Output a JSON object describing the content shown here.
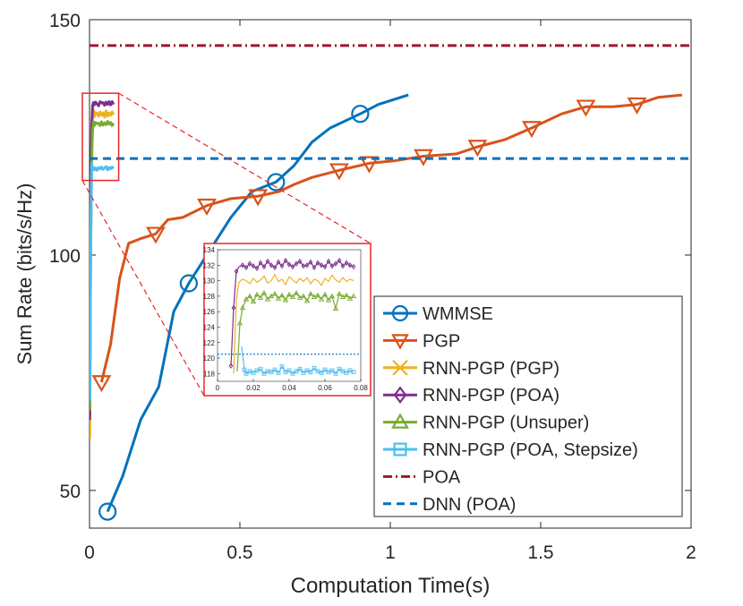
{
  "chart_data": [
    {
      "type": "line",
      "role": "main",
      "xlabel": "Computation Time(s)",
      "ylabel": "Sum Rate (bits/s/Hz)",
      "xlim": [
        0,
        2
      ],
      "ylim": [
        42,
        150
      ],
      "xticks": [
        0,
        0.5,
        1,
        1.5,
        2
      ],
      "xtick_labels": [
        "0",
        "0.5",
        "1",
        "1.5",
        "2"
      ],
      "yticks": [
        50,
        100,
        150
      ],
      "ytick_labels": [
        "50",
        "100",
        "150"
      ],
      "grid": false,
      "legend_position": "bottom-right",
      "series": [
        {
          "name": "WMMSE",
          "color": "#0072BD",
          "marker": "circle",
          "x": [
            0.06,
            0.11,
            0.17,
            0.23,
            0.28,
            0.33,
            0.4,
            0.47,
            0.54,
            0.62,
            0.68,
            0.74,
            0.8,
            0.9,
            0.96,
            1.06
          ],
          "y": [
            45.5,
            53,
            65,
            72,
            88,
            94,
            101,
            108,
            113.5,
            115.5,
            119,
            124,
            127,
            130,
            132,
            134
          ],
          "marker_indices": [
            0,
            5,
            9,
            13
          ]
        },
        {
          "name": "PGP",
          "color": "#D95319",
          "marker": "triangle-down",
          "x": [
            0.04,
            0.07,
            0.1,
            0.13,
            0.17,
            0.22,
            0.26,
            0.31,
            0.39,
            0.47,
            0.56,
            0.63,
            0.68,
            0.74,
            0.83,
            0.93,
            1.01,
            1.11,
            1.22,
            1.29,
            1.38,
            1.47,
            1.57,
            1.65,
            1.74,
            1.82,
            1.89,
            1.97
          ],
          "y": [
            73,
            81,
            95,
            102.5,
            103.5,
            104.5,
            107.5,
            108,
            110.5,
            112,
            112.5,
            113.5,
            115,
            116.5,
            118,
            119.5,
            120,
            121,
            121.5,
            123,
            124.5,
            127,
            130,
            131.5,
            131.5,
            132,
            133.5,
            134
          ],
          "marker_indices": [
            0,
            5,
            8,
            10,
            14,
            15,
            17,
            19,
            21,
            23,
            25
          ]
        },
        {
          "name": "RNN-PGP (PGP)",
          "color": "#EDB120",
          "marker": "x",
          "x": [
            0.001,
            0.004,
            0.007,
            0.01,
            0.013,
            0.016,
            0.02,
            0.025,
            0.03,
            0.035,
            0.04,
            0.045,
            0.05,
            0.055,
            0.06,
            0.065,
            0.07,
            0.075,
            0.08
          ],
          "y": [
            61,
            100,
            128,
            130.5,
            130.8,
            129.4,
            130.3,
            130.1,
            129.5,
            130.4,
            129.7,
            130.2,
            129.3,
            130.6,
            129.5,
            130.2,
            129.7,
            130.4,
            129.8
          ],
          "marker_indices": []
        },
        {
          "name": "RNN-PGP (POA)",
          "color": "#7E2F8E",
          "marker": "diamond",
          "x": [
            0.001,
            0.004,
            0.007,
            0.01,
            0.013,
            0.016,
            0.02,
            0.025,
            0.03,
            0.035,
            0.04,
            0.045,
            0.05,
            0.055,
            0.06,
            0.065,
            0.07,
            0.075,
            0.08
          ],
          "y": [
            65,
            110,
            126.5,
            131.8,
            132.4,
            131.9,
            132.5,
            132.1,
            131.7,
            132.6,
            132.3,
            132.4,
            131.8,
            132.5,
            132.0,
            132.6,
            131.9,
            132.6,
            132.0
          ],
          "marker_indices": []
        },
        {
          "name": "RNN-PGP (Unsuper)",
          "color": "#77AC30",
          "marker": "triangle-up",
          "x": [
            0.001,
            0.004,
            0.007,
            0.01,
            0.013,
            0.016,
            0.02,
            0.025,
            0.03,
            0.035,
            0.04,
            0.045,
            0.05,
            0.055,
            0.06,
            0.065,
            0.07,
            0.075,
            0.08
          ],
          "y": [
            67,
            102,
            120,
            126.5,
            128.3,
            127.5,
            128.2,
            127.9,
            128.0,
            127.5,
            128.3,
            127.6,
            128.1,
            127.7,
            128.4,
            127.8,
            128.2,
            127.5,
            128.0
          ],
          "marker_indices": []
        },
        {
          "name": "RNN-PGP (POA, Stepsize)",
          "color": "#4DBEEE",
          "marker": "square",
          "x": [
            0.001,
            0.004,
            0.007,
            0.01,
            0.013,
            0.016,
            0.02,
            0.025,
            0.03,
            0.035,
            0.04,
            0.045,
            0.05,
            0.055,
            0.06,
            0.065,
            0.07,
            0.075,
            0.08
          ],
          "y": [
            69,
            100,
            119.5,
            118.2,
            118.6,
            118.1,
            118.5,
            118.0,
            118.6,
            118.3,
            118.7,
            118.2,
            118.5,
            118.8,
            118.1,
            118.6,
            118.3,
            118.7,
            118.4
          ],
          "marker_indices": []
        },
        {
          "name": "POA",
          "color": "#A2142F",
          "marker": "none",
          "style": "dash-dot",
          "x": [
            0,
            2
          ],
          "y": [
            144.5,
            144.5
          ],
          "marker_indices": []
        },
        {
          "name": "DNN (POA)",
          "color": "#0072BD",
          "marker": "none",
          "style": "dashed",
          "x": [
            0,
            2
          ],
          "y": [
            120.5,
            120.5
          ],
          "marker_indices": []
        }
      ]
    },
    {
      "type": "line",
      "role": "inset",
      "xlim": [
        0,
        0.08
      ],
      "ylim": [
        117,
        134
      ],
      "xticks": [
        0,
        0.02,
        0.04,
        0.06,
        0.08
      ],
      "xtick_labels": [
        "0",
        "0.02",
        "0.04",
        "0.06",
        "0.08"
      ],
      "yticks": [
        118,
        120,
        122,
        124,
        126,
        128,
        130,
        132,
        134
      ],
      "ytick_labels": [
        "118",
        "120",
        "122",
        "124",
        "126",
        "128",
        "130",
        "132",
        "134"
      ],
      "zoom_region": {
        "x": [
          0,
          0.085
        ],
        "y": [
          117,
          134
        ]
      },
      "series": [
        {
          "name": "RNN-PGP (PGP)",
          "color": "#EDB120",
          "marker": "x",
          "x": [
            0.009,
            0.0105,
            0.012,
            0.014,
            0.016,
            0.018,
            0.02,
            0.022,
            0.024,
            0.026,
            0.028,
            0.03,
            0.032,
            0.034,
            0.036,
            0.038,
            0.04,
            0.042,
            0.044,
            0.046,
            0.048,
            0.05,
            0.052,
            0.054,
            0.056,
            0.058,
            0.06,
            0.062,
            0.064,
            0.066,
            0.068,
            0.07,
            0.072,
            0.074,
            0.076
          ],
          "y": [
            118,
            127.5,
            129.8,
            130.2,
            130.0,
            129.6,
            130.3,
            129.8,
            130.1,
            130.6,
            129.7,
            130.0,
            130.8,
            129.9,
            130.2,
            129.5,
            130.5,
            130.1,
            129.7,
            130.3,
            129.9,
            130.4,
            129.6,
            130.2,
            130.0,
            129.4,
            130.3,
            129.9,
            130.7,
            130.1,
            129.8,
            130.4,
            129.9,
            130.2,
            130.0
          ],
          "marker_indices": []
        },
        {
          "name": "RNN-PGP (POA)",
          "color": "#7E2F8E",
          "marker": "diamond",
          "x": [
            0.0075,
            0.009,
            0.0105,
            0.012,
            0.014,
            0.016,
            0.018,
            0.02,
            0.022,
            0.024,
            0.026,
            0.028,
            0.03,
            0.032,
            0.034,
            0.036,
            0.038,
            0.04,
            0.042,
            0.044,
            0.046,
            0.048,
            0.05,
            0.052,
            0.054,
            0.056,
            0.058,
            0.06,
            0.062,
            0.064,
            0.066,
            0.068,
            0.07,
            0.072,
            0.074,
            0.076
          ],
          "y": [
            119,
            126.5,
            131.2,
            131.8,
            132.0,
            131.7,
            132.2,
            131.9,
            131.6,
            132.3,
            131.8,
            132.5,
            132.0,
            131.7,
            132.4,
            131.9,
            132.6,
            132.1,
            131.8,
            132.2,
            132.5,
            131.9,
            132.0,
            132.4,
            131.7,
            132.3,
            132.0,
            131.8,
            132.5,
            131.9,
            132.2,
            132.6,
            131.9,
            132.3,
            132.0,
            131.8
          ],
          "marker_indices": [
            0,
            1,
            2,
            4,
            5,
            6,
            7,
            8,
            9,
            10,
            11,
            12,
            13,
            14,
            15,
            16,
            17,
            18,
            19,
            20,
            21,
            22,
            23,
            24,
            25,
            26,
            27,
            28,
            29,
            30,
            31,
            32,
            33,
            34,
            35
          ]
        },
        {
          "name": "RNN-PGP (Unsuper)",
          "color": "#77AC30",
          "marker": "triangle-up",
          "x": [
            0.011,
            0.0125,
            0.014,
            0.016,
            0.018,
            0.02,
            0.022,
            0.024,
            0.026,
            0.028,
            0.03,
            0.032,
            0.034,
            0.036,
            0.038,
            0.04,
            0.042,
            0.044,
            0.046,
            0.048,
            0.05,
            0.052,
            0.054,
            0.056,
            0.058,
            0.06,
            0.062,
            0.064,
            0.066,
            0.068,
            0.07,
            0.072,
            0.074,
            0.076
          ],
          "y": [
            118.3,
            124.5,
            126.5,
            127.6,
            128.0,
            127.3,
            128.2,
            127.8,
            128.4,
            127.6,
            128.0,
            128.3,
            127.7,
            128.1,
            127.5,
            128.2,
            127.9,
            128.4,
            127.8,
            128.0,
            127.4,
            128.3,
            127.9,
            128.1,
            127.6,
            128.2,
            127.5,
            128.0,
            126.4,
            128.3,
            127.9,
            128.1,
            127.7,
            128.0
          ],
          "marker_indices": [
            1,
            2,
            3,
            4,
            5,
            6,
            7,
            8,
            9,
            10,
            11,
            12,
            13,
            14,
            15,
            16,
            17,
            18,
            19,
            20,
            21,
            22,
            23,
            24,
            25,
            26,
            27,
            28,
            29,
            30,
            31,
            32,
            33
          ]
        },
        {
          "name": "RNN-PGP (POA, Stepsize)",
          "color": "#4DBEEE",
          "marker": "square",
          "x": [
            0.0135,
            0.015,
            0.016,
            0.018,
            0.02,
            0.022,
            0.024,
            0.026,
            0.028,
            0.03,
            0.032,
            0.034,
            0.036,
            0.038,
            0.04,
            0.042,
            0.044,
            0.046,
            0.048,
            0.05,
            0.052,
            0.054,
            0.056,
            0.058,
            0.06,
            0.062,
            0.064,
            0.066,
            0.068,
            0.07,
            0.072,
            0.074,
            0.076
          ],
          "y": [
            121.5,
            118.5,
            118.0,
            118.3,
            118.1,
            118.4,
            118.6,
            118.0,
            118.3,
            118.2,
            118.5,
            118.1,
            118.9,
            118.2,
            118.4,
            118.0,
            118.3,
            118.6,
            118.1,
            118.4,
            118.2,
            118.7,
            118.3,
            118.1,
            118.5,
            118.2,
            118.4,
            118.0,
            118.6,
            118.3,
            118.1,
            118.4,
            118.2
          ],
          "marker_indices": [
            1,
            2,
            3,
            4,
            5,
            6,
            7,
            8,
            9,
            10,
            11,
            12,
            13,
            14,
            15,
            16,
            17,
            18,
            19,
            20,
            21,
            22,
            23,
            24,
            25,
            26,
            27,
            28,
            29,
            30,
            31,
            32
          ]
        },
        {
          "name": "DNN (POA)",
          "color": "#0072BD",
          "marker": "none",
          "style": "dotted",
          "x": [
            0,
            0.08
          ],
          "y": [
            120.5,
            120.5
          ],
          "marker_indices": []
        }
      ]
    }
  ]
}
